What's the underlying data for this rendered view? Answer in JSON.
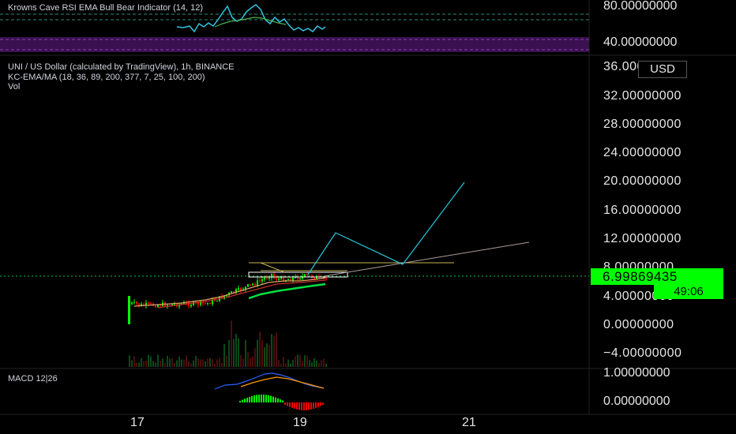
{
  "rsi_pane": {
    "title": "Krowns Cave RSI EMA Bull Bear Indicator (14, 12)",
    "axis_labels": [
      "80.00000000",
      "40.00000000"
    ]
  },
  "main_pane": {
    "symbol_title": "UNI / US Dollar (calculated by TradingView), 1h, BINANCE",
    "indicator_legend": "KC-EMA/MA (18, 36, 89, 200, 377, 7, 25, 100, 200)",
    "volume_legend": "Vol",
    "currency_badge": "USD",
    "price_axis": [
      "36.00000000",
      "32.00000000",
      "28.00000000",
      "24.00000000",
      "20.00000000",
      "16.00000000",
      "12.00000000",
      "8.00000000",
      "4.00000000",
      "0.00000000",
      "−4.00000000"
    ],
    "last_price": "6.99869435",
    "countdown": "49:06"
  },
  "macd_pane": {
    "title": "MACD 12|26",
    "axis_labels": [
      "1.00000000",
      "0.00000000"
    ]
  },
  "time_axis": [
    "17",
    "19",
    "21"
  ],
  "colors": {
    "background": "#000000",
    "bull": "#00ff00",
    "bear": "#ff0000",
    "rsi_line": "#2ec5e0",
    "rsi_zone": "#4a1a6b",
    "forecast_line": "#26c6da",
    "trend_line": "#b0a0a0",
    "resistance_line": "#c8b450",
    "price_tag": "#00ff00",
    "macd_line": "#2962ff",
    "signal_line": "#ff9800"
  }
}
